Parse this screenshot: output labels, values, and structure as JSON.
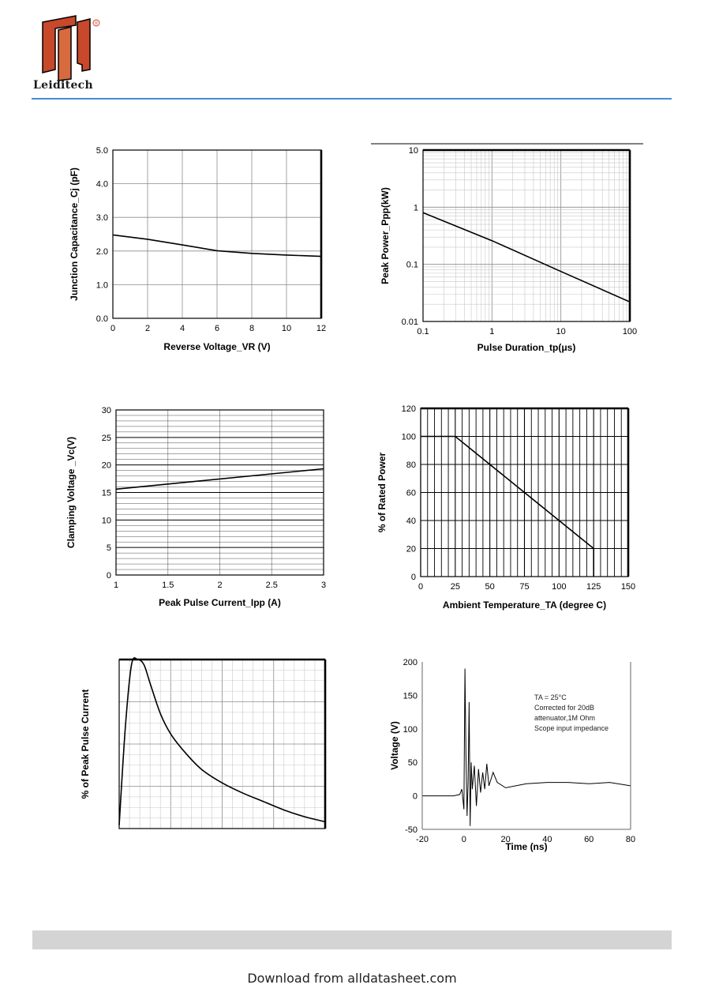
{
  "header": {
    "brand": "Leiditech",
    "registered_mark": "®",
    "logo_color": "#c7482b"
  },
  "footer": {
    "download_text": "Download from alldatasheet.com"
  },
  "chart_data": [
    {
      "id": "capacitance",
      "type": "line",
      "title": "",
      "xlabel": "Reverse Voltage_VR (V)",
      "ylabel": "Junction Capacitance_Cj (pF)",
      "xlim": [
        0,
        12
      ],
      "ylim": [
        0,
        5
      ],
      "xticks": [
        "0",
        "2",
        "4",
        "6",
        "8",
        "10",
        "12"
      ],
      "yticks": [
        "0.0",
        "1.0",
        "2.0",
        "3.0",
        "4.0",
        "5.0"
      ],
      "grid": true,
      "x": [
        0,
        2,
        4,
        6,
        8,
        10,
        12
      ],
      "y": [
        2.48,
        2.35,
        2.18,
        2.01,
        1.93,
        1.88,
        1.84
      ]
    },
    {
      "id": "pulse-power",
      "type": "line",
      "title": "",
      "xlabel": "Pulse Duration_tp(μs)",
      "ylabel": "Peak Power_Ppp(kW)",
      "xscale": "log",
      "yscale": "log",
      "xlim": [
        0.1,
        100
      ],
      "ylim": [
        0.01,
        10
      ],
      "xticks": [
        "0.1",
        "1",
        "10",
        "100"
      ],
      "yticks": [
        "0.01",
        "0.1",
        "1",
        "10"
      ],
      "grid": true,
      "x": [
        0.1,
        1,
        10,
        100
      ],
      "y": [
        0.8,
        0.26,
        0.075,
        0.022
      ]
    },
    {
      "id": "clamping",
      "type": "line",
      "title": "",
      "xlabel": "Peak Pulse Current_Ipp (A)",
      "ylabel": "Clamping Voltage _Vc(V)",
      "xlim": [
        1,
        3
      ],
      "ylim": [
        0,
        30
      ],
      "xticks": [
        "1",
        "1.5",
        "2",
        "2.5",
        "3"
      ],
      "yticks": [
        "0",
        "5",
        "10",
        "15",
        "20",
        "25",
        "30"
      ],
      "grid": true,
      "x": [
        1,
        3
      ],
      "y": [
        15.6,
        19.3
      ]
    },
    {
      "id": "derating",
      "type": "line",
      "title": "",
      "xlabel": "Ambient Temperature_TA (degree C)",
      "ylabel": "% of Rated Power",
      "xlim": [
        0,
        150
      ],
      "ylim": [
        0,
        120
      ],
      "xticks": [
        "0",
        "25",
        "50",
        "75",
        "100",
        "125",
        "150"
      ],
      "yticks": [
        "0",
        "20",
        "40",
        "60",
        "80",
        "100",
        "120"
      ],
      "grid": true,
      "x": [
        0,
        25,
        125,
        125
      ],
      "y": [
        100,
        100,
        20,
        0
      ]
    },
    {
      "id": "pulse-waveform",
      "type": "line",
      "title": "",
      "xlabel": "",
      "ylabel": "% of Peak Pulse Current",
      "xlim": [
        0,
        1
      ],
      "ylim": [
        0,
        1
      ],
      "grid": true,
      "x": [
        0,
        0.03,
        0.06,
        0.09,
        0.12,
        0.15,
        0.2,
        0.25,
        0.32,
        0.4,
        0.5,
        0.6,
        0.7,
        0.8,
        0.9,
        1.0
      ],
      "y": [
        0.02,
        0.6,
        0.97,
        1.0,
        0.97,
        0.86,
        0.68,
        0.56,
        0.45,
        0.35,
        0.27,
        0.21,
        0.16,
        0.11,
        0.07,
        0.04
      ]
    },
    {
      "id": "esd-clamping",
      "type": "line",
      "title": "",
      "xlabel": "Time (ns)",
      "ylabel": "Voltage (V)",
      "xlim": [
        -20,
        80
      ],
      "ylim": [
        -50,
        200
      ],
      "xticks": [
        "-20",
        "0",
        "20",
        "40",
        "60",
        "80"
      ],
      "yticks": [
        "-50",
        "0",
        "50",
        "100",
        "150",
        "200"
      ],
      "grid": false,
      "annotation": [
        "TA = 25°C",
        "Corrected for 20dB",
        "attenuator,1M Ohm",
        "Scope input impedance"
      ],
      "x": [
        -20,
        -5,
        -2,
        -1,
        0,
        0.5,
        1,
        1.5,
        2,
        2.5,
        3,
        3.5,
        4,
        5,
        6,
        7,
        8,
        9,
        10,
        11,
        12,
        14,
        16,
        20,
        30,
        40,
        50,
        60,
        70,
        80
      ],
      "y": [
        0,
        0,
        2,
        10,
        -20,
        190,
        60,
        -30,
        20,
        140,
        -45,
        50,
        10,
        45,
        -15,
        40,
        5,
        35,
        10,
        48,
        15,
        35,
        20,
        12,
        18,
        20,
        20,
        18,
        20,
        15
      ]
    }
  ]
}
